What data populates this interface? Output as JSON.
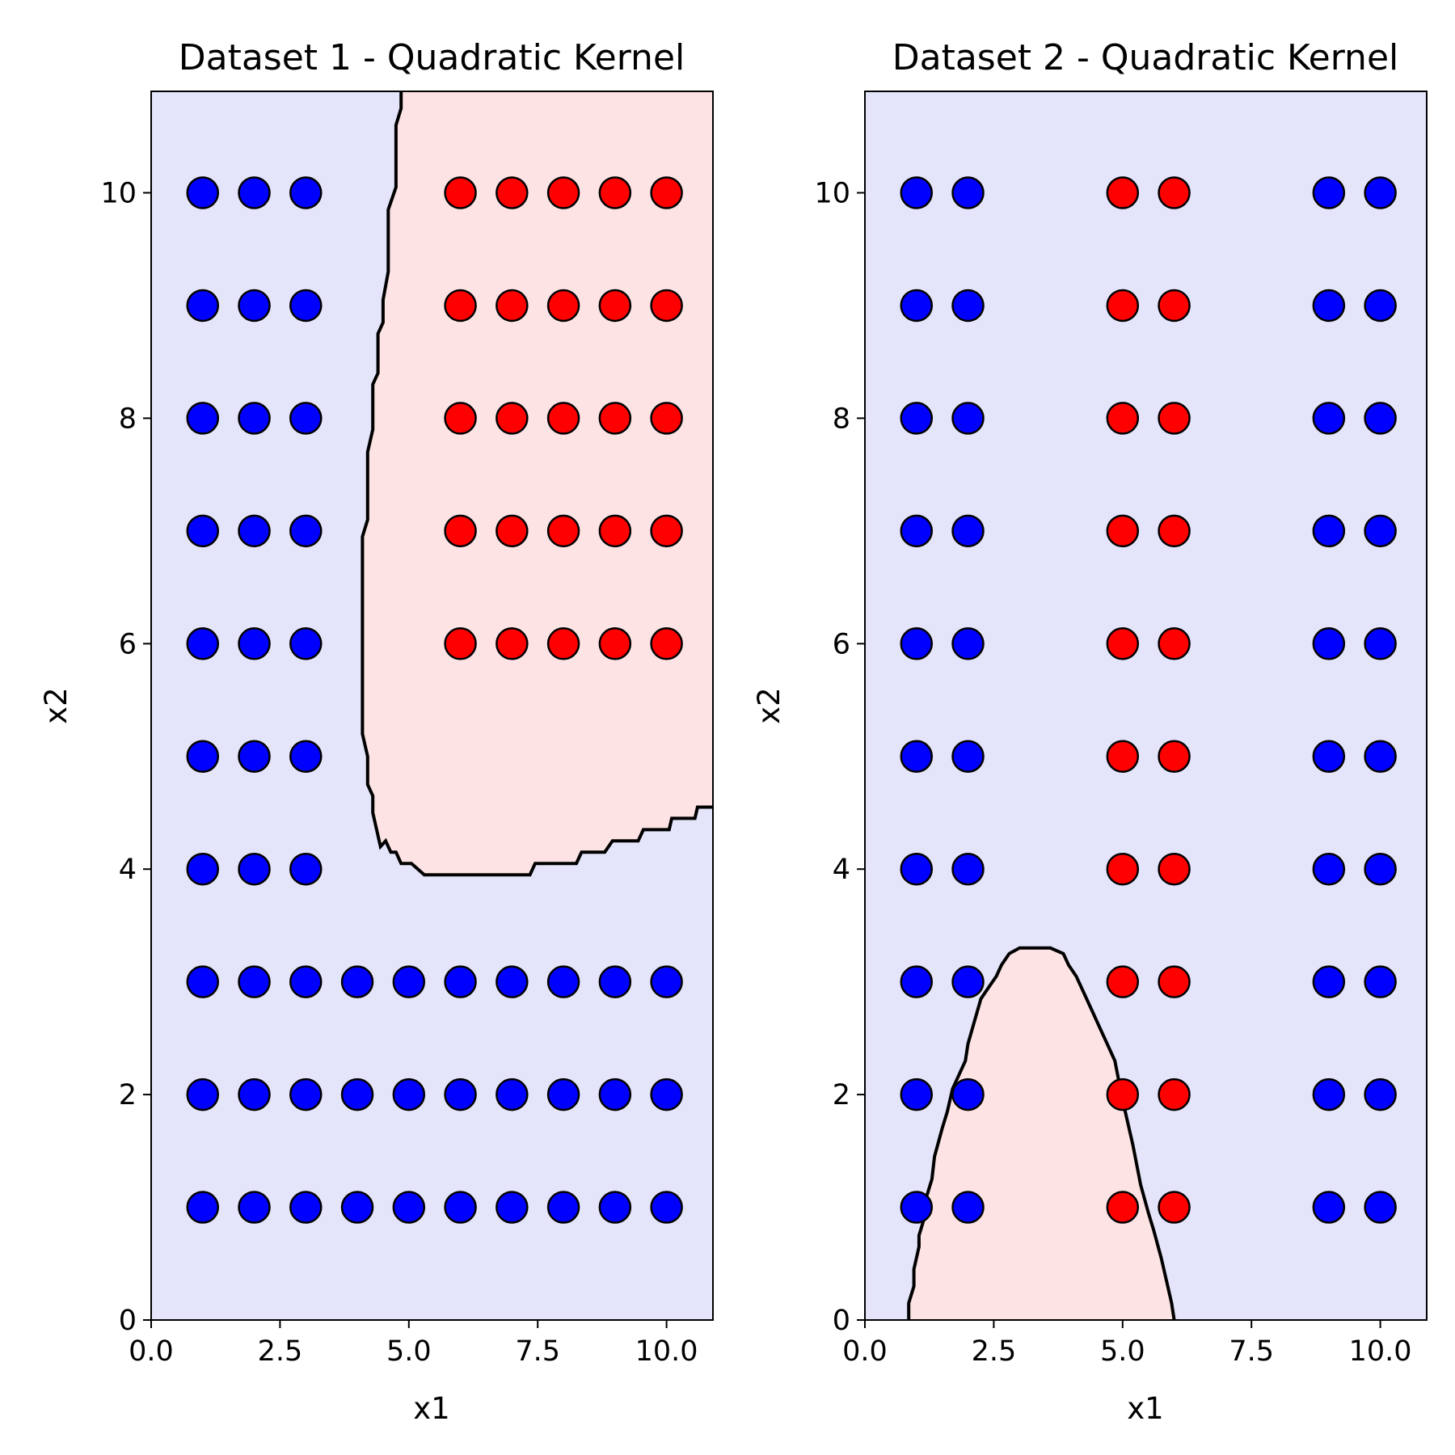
{
  "colors": {
    "class0_region": "#e4e4fb",
    "class1_region": "#fde3e4",
    "class0_point": "#0000ff",
    "class1_point": "#ff0000",
    "boundary": "#000000"
  },
  "chart_data": [
    {
      "type": "scatter",
      "title": "Dataset 1 - Quadratic Kernel",
      "xlabel": "x1",
      "ylabel": "x2",
      "xlim": [
        0,
        10.9
      ],
      "ylim": [
        0,
        10.9
      ],
      "xticks": [
        "0.0",
        "2.5",
        "5.0",
        "7.5",
        "10.0"
      ],
      "yticks": [
        "0",
        "2",
        "4",
        "6",
        "8",
        "10"
      ],
      "grid": false,
      "background_class": "class0",
      "series": [
        {
          "class": "class0",
          "points": [
            [
              1,
              10
            ],
            [
              2,
              10
            ],
            [
              3,
              10
            ],
            [
              1,
              9
            ],
            [
              2,
              9
            ],
            [
              3,
              9
            ],
            [
              1,
              8
            ],
            [
              2,
              8
            ],
            [
              3,
              8
            ],
            [
              1,
              7
            ],
            [
              2,
              7
            ],
            [
              3,
              7
            ],
            [
              1,
              6
            ],
            [
              2,
              6
            ],
            [
              3,
              6
            ],
            [
              1,
              5
            ],
            [
              2,
              5
            ],
            [
              3,
              5
            ],
            [
              1,
              4
            ],
            [
              2,
              4
            ],
            [
              3,
              4
            ],
            [
              1,
              3
            ],
            [
              2,
              3
            ],
            [
              3,
              3
            ],
            [
              4,
              3
            ],
            [
              5,
              3
            ],
            [
              6,
              3
            ],
            [
              7,
              3
            ],
            [
              8,
              3
            ],
            [
              9,
              3
            ],
            [
              10,
              3
            ],
            [
              1,
              2
            ],
            [
              2,
              2
            ],
            [
              3,
              2
            ],
            [
              4,
              2
            ],
            [
              5,
              2
            ],
            [
              6,
              2
            ],
            [
              7,
              2
            ],
            [
              8,
              2
            ],
            [
              9,
              2
            ],
            [
              10,
              2
            ],
            [
              1,
              1
            ],
            [
              2,
              1
            ],
            [
              3,
              1
            ],
            [
              4,
              1
            ],
            [
              5,
              1
            ],
            [
              6,
              1
            ],
            [
              7,
              1
            ],
            [
              8,
              1
            ],
            [
              9,
              1
            ],
            [
              10,
              1
            ]
          ]
        },
        {
          "class": "class1",
          "points": [
            [
              6,
              10
            ],
            [
              7,
              10
            ],
            [
              8,
              10
            ],
            [
              9,
              10
            ],
            [
              10,
              10
            ],
            [
              6,
              9
            ],
            [
              7,
              9
            ],
            [
              8,
              9
            ],
            [
              9,
              9
            ],
            [
              10,
              9
            ],
            [
              6,
              8
            ],
            [
              7,
              8
            ],
            [
              8,
              8
            ],
            [
              9,
              8
            ],
            [
              10,
              8
            ],
            [
              6,
              7
            ],
            [
              7,
              7
            ],
            [
              8,
              7
            ],
            [
              9,
              7
            ],
            [
              10,
              7
            ],
            [
              6,
              6
            ],
            [
              7,
              6
            ],
            [
              8,
              6
            ],
            [
              9,
              6
            ],
            [
              10,
              6
            ]
          ]
        }
      ],
      "decision_region": {
        "class": "class1",
        "boundary": [
          [
            4.85,
            10.9
          ],
          [
            4.85,
            10.75
          ],
          [
            4.75,
            10.6
          ],
          [
            4.75,
            10.05
          ],
          [
            4.6,
            9.85
          ],
          [
            4.6,
            9.3
          ],
          [
            4.5,
            9.05
          ],
          [
            4.5,
            8.85
          ],
          [
            4.4,
            8.75
          ],
          [
            4.4,
            8.4
          ],
          [
            4.3,
            8.3
          ],
          [
            4.3,
            7.9
          ],
          [
            4.2,
            7.7
          ],
          [
            4.2,
            7.1
          ],
          [
            4.1,
            6.95
          ],
          [
            4.1,
            5.2
          ],
          [
            4.2,
            5.0
          ],
          [
            4.2,
            4.75
          ],
          [
            4.3,
            4.65
          ],
          [
            4.3,
            4.5
          ],
          [
            4.45,
            4.2
          ],
          [
            4.55,
            4.25
          ],
          [
            4.65,
            4.15
          ],
          [
            4.75,
            4.15
          ],
          [
            4.85,
            4.05
          ],
          [
            5.05,
            4.05
          ],
          [
            5.3,
            3.95
          ],
          [
            7.35,
            3.95
          ],
          [
            7.45,
            4.05
          ],
          [
            8.25,
            4.05
          ],
          [
            8.35,
            4.15
          ],
          [
            8.8,
            4.15
          ],
          [
            8.95,
            4.25
          ],
          [
            9.45,
            4.25
          ],
          [
            9.55,
            4.35
          ],
          [
            10.05,
            4.35
          ],
          [
            10.1,
            4.45
          ],
          [
            10.55,
            4.45
          ],
          [
            10.6,
            4.55
          ],
          [
            10.9,
            4.55
          ]
        ],
        "closure": [
          [
            10.9,
            10.9
          ]
        ]
      }
    },
    {
      "type": "scatter",
      "title": "Dataset 2 - Quadratic Kernel",
      "xlabel": "x1",
      "ylabel": "x2",
      "xlim": [
        0,
        10.9
      ],
      "ylim": [
        0,
        10.9
      ],
      "xticks": [
        "0.0",
        "2.5",
        "5.0",
        "7.5",
        "10.0"
      ],
      "yticks": [
        "0",
        "2",
        "4",
        "6",
        "8",
        "10"
      ],
      "grid": false,
      "background_class": "class0",
      "series": [
        {
          "class": "class0",
          "points": [
            [
              1,
              10
            ],
            [
              2,
              10
            ],
            [
              9,
              10
            ],
            [
              10,
              10
            ],
            [
              1,
              9
            ],
            [
              2,
              9
            ],
            [
              9,
              9
            ],
            [
              10,
              9
            ],
            [
              1,
              8
            ],
            [
              2,
              8
            ],
            [
              9,
              8
            ],
            [
              10,
              8
            ],
            [
              1,
              7
            ],
            [
              2,
              7
            ],
            [
              9,
              7
            ],
            [
              10,
              7
            ],
            [
              1,
              6
            ],
            [
              2,
              6
            ],
            [
              9,
              6
            ],
            [
              10,
              6
            ],
            [
              1,
              5
            ],
            [
              2,
              5
            ],
            [
              9,
              5
            ],
            [
              10,
              5
            ],
            [
              1,
              4
            ],
            [
              2,
              4
            ],
            [
              9,
              4
            ],
            [
              10,
              4
            ],
            [
              1,
              3
            ],
            [
              2,
              3
            ],
            [
              9,
              3
            ],
            [
              10,
              3
            ],
            [
              1,
              2
            ],
            [
              2,
              2
            ],
            [
              9,
              2
            ],
            [
              10,
              2
            ],
            [
              1,
              1
            ],
            [
              2,
              1
            ],
            [
              9,
              1
            ],
            [
              10,
              1
            ]
          ]
        },
        {
          "class": "class1",
          "points": [
            [
              5,
              10
            ],
            [
              6,
              10
            ],
            [
              5,
              9
            ],
            [
              6,
              9
            ],
            [
              5,
              8
            ],
            [
              6,
              8
            ],
            [
              5,
              7
            ],
            [
              6,
              7
            ],
            [
              5,
              6
            ],
            [
              6,
              6
            ],
            [
              5,
              5
            ],
            [
              6,
              5
            ],
            [
              5,
              4
            ],
            [
              6,
              4
            ],
            [
              5,
              3
            ],
            [
              6,
              3
            ],
            [
              5,
              2
            ],
            [
              6,
              2
            ],
            [
              5,
              1
            ],
            [
              6,
              1
            ]
          ]
        }
      ],
      "decision_region": {
        "class": "class1",
        "boundary": [
          [
            0.85,
            0
          ],
          [
            0.85,
            0.15
          ],
          [
            0.95,
            0.3
          ],
          [
            0.95,
            0.45
          ],
          [
            1.05,
            0.65
          ],
          [
            1.05,
            0.75
          ],
          [
            1.15,
            0.9
          ],
          [
            1.2,
            1.1
          ],
          [
            1.3,
            1.25
          ],
          [
            1.35,
            1.45
          ],
          [
            1.5,
            1.7
          ],
          [
            1.6,
            1.85
          ],
          [
            1.7,
            2.05
          ],
          [
            1.8,
            2.15
          ],
          [
            1.95,
            2.3
          ],
          [
            2.0,
            2.45
          ],
          [
            2.25,
            2.85
          ],
          [
            2.4,
            2.95
          ],
          [
            2.55,
            3.05
          ],
          [
            2.65,
            3.15
          ],
          [
            2.8,
            3.25
          ],
          [
            3.0,
            3.3
          ],
          [
            3.3,
            3.3
          ],
          [
            3.6,
            3.3
          ],
          [
            3.85,
            3.25
          ],
          [
            3.95,
            3.15
          ],
          [
            4.1,
            3.05
          ],
          [
            4.25,
            2.9
          ],
          [
            4.4,
            2.75
          ],
          [
            4.55,
            2.6
          ],
          [
            4.7,
            2.45
          ],
          [
            4.85,
            2.3
          ],
          [
            5.0,
            1.95
          ],
          [
            5.2,
            1.55
          ],
          [
            5.35,
            1.2
          ],
          [
            5.5,
            0.95
          ],
          [
            5.6,
            0.8
          ],
          [
            5.75,
            0.55
          ],
          [
            5.85,
            0.35
          ],
          [
            5.95,
            0.15
          ],
          [
            6.0,
            0
          ]
        ],
        "closure": []
      }
    }
  ]
}
